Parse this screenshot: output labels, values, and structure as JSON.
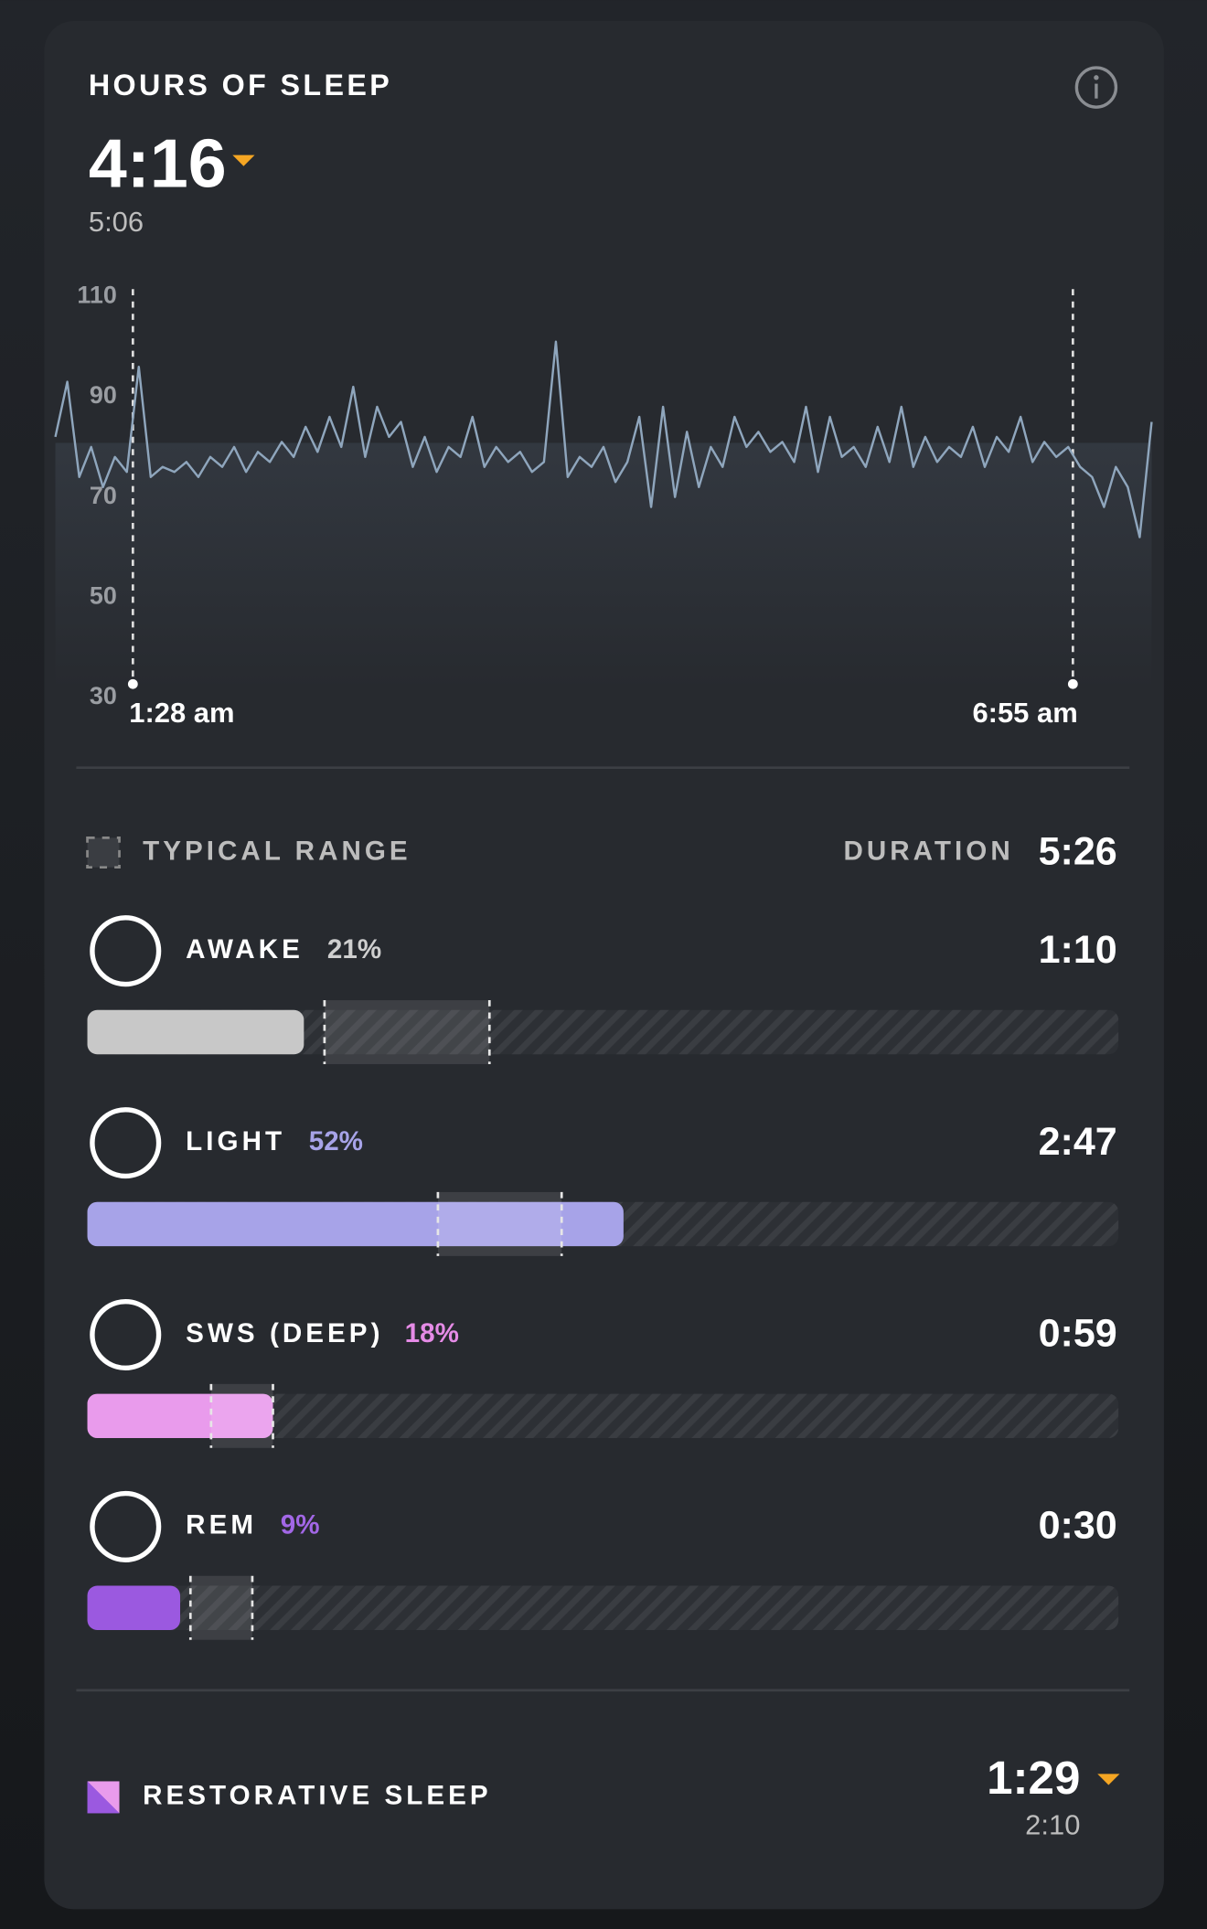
{
  "header": {
    "title": "HOURS OF SLEEP",
    "value": "4:16",
    "baseline": "5:06"
  },
  "heart_rate": {
    "ylim": [
      30,
      110
    ],
    "yticks": [
      110,
      90,
      70,
      50,
      30
    ],
    "start_label": "1:28 am",
    "end_label": "6:55 am",
    "values": [
      82,
      93,
      74,
      80,
      72,
      78,
      75,
      96,
      74,
      76,
      75,
      77,
      74,
      78,
      76,
      80,
      75,
      79,
      77,
      81,
      78,
      84,
      79,
      86,
      80,
      92,
      78,
      88,
      82,
      85,
      76,
      82,
      75,
      80,
      78,
      86,
      76,
      80,
      77,
      79,
      75,
      77,
      101,
      74,
      78,
      76,
      80,
      73,
      77,
      86,
      68,
      88,
      70,
      83,
      72,
      80,
      76,
      86,
      80,
      83,
      79,
      81,
      77,
      88,
      75,
      86,
      78,
      80,
      76,
      84,
      77,
      88,
      76,
      82,
      77,
      80,
      78,
      84,
      76,
      82,
      79,
      86,
      77,
      81,
      78,
      80,
      76,
      74,
      68,
      76,
      72,
      62,
      85
    ]
  },
  "legend": {
    "typical_range": "TYPICAL RANGE",
    "duration_label": "DURATION",
    "duration": "5:26"
  },
  "stages": [
    {
      "name": "AWAKE",
      "value": 21,
      "value_label": "21%",
      "duration": "1:10",
      "color": "#c8c8c8",
      "label_color": "#cfcfcf",
      "typical_range": [
        23,
        39
      ]
    },
    {
      "name": "LIGHT",
      "value": 52,
      "value_label": "52%",
      "duration": "2:47",
      "color": "#a7a3e8",
      "label_color": "#a7a3e8",
      "typical_range": [
        34,
        46
      ]
    },
    {
      "name": "SWS (DEEP)",
      "value": 18,
      "value_label": "18%",
      "duration": "0:59",
      "color": "#e99bec",
      "label_color": "#e58be6",
      "typical_range": [
        12,
        18
      ]
    },
    {
      "name": "REM",
      "value": 9,
      "value_label": "9%",
      "duration": "0:30",
      "color": "#9b59e0",
      "label_color": "#a267e6",
      "typical_range": [
        10,
        16
      ]
    }
  ],
  "restorative": {
    "title": "RESTORATIVE SLEEP",
    "value": "1:29",
    "baseline": "2:10"
  }
}
